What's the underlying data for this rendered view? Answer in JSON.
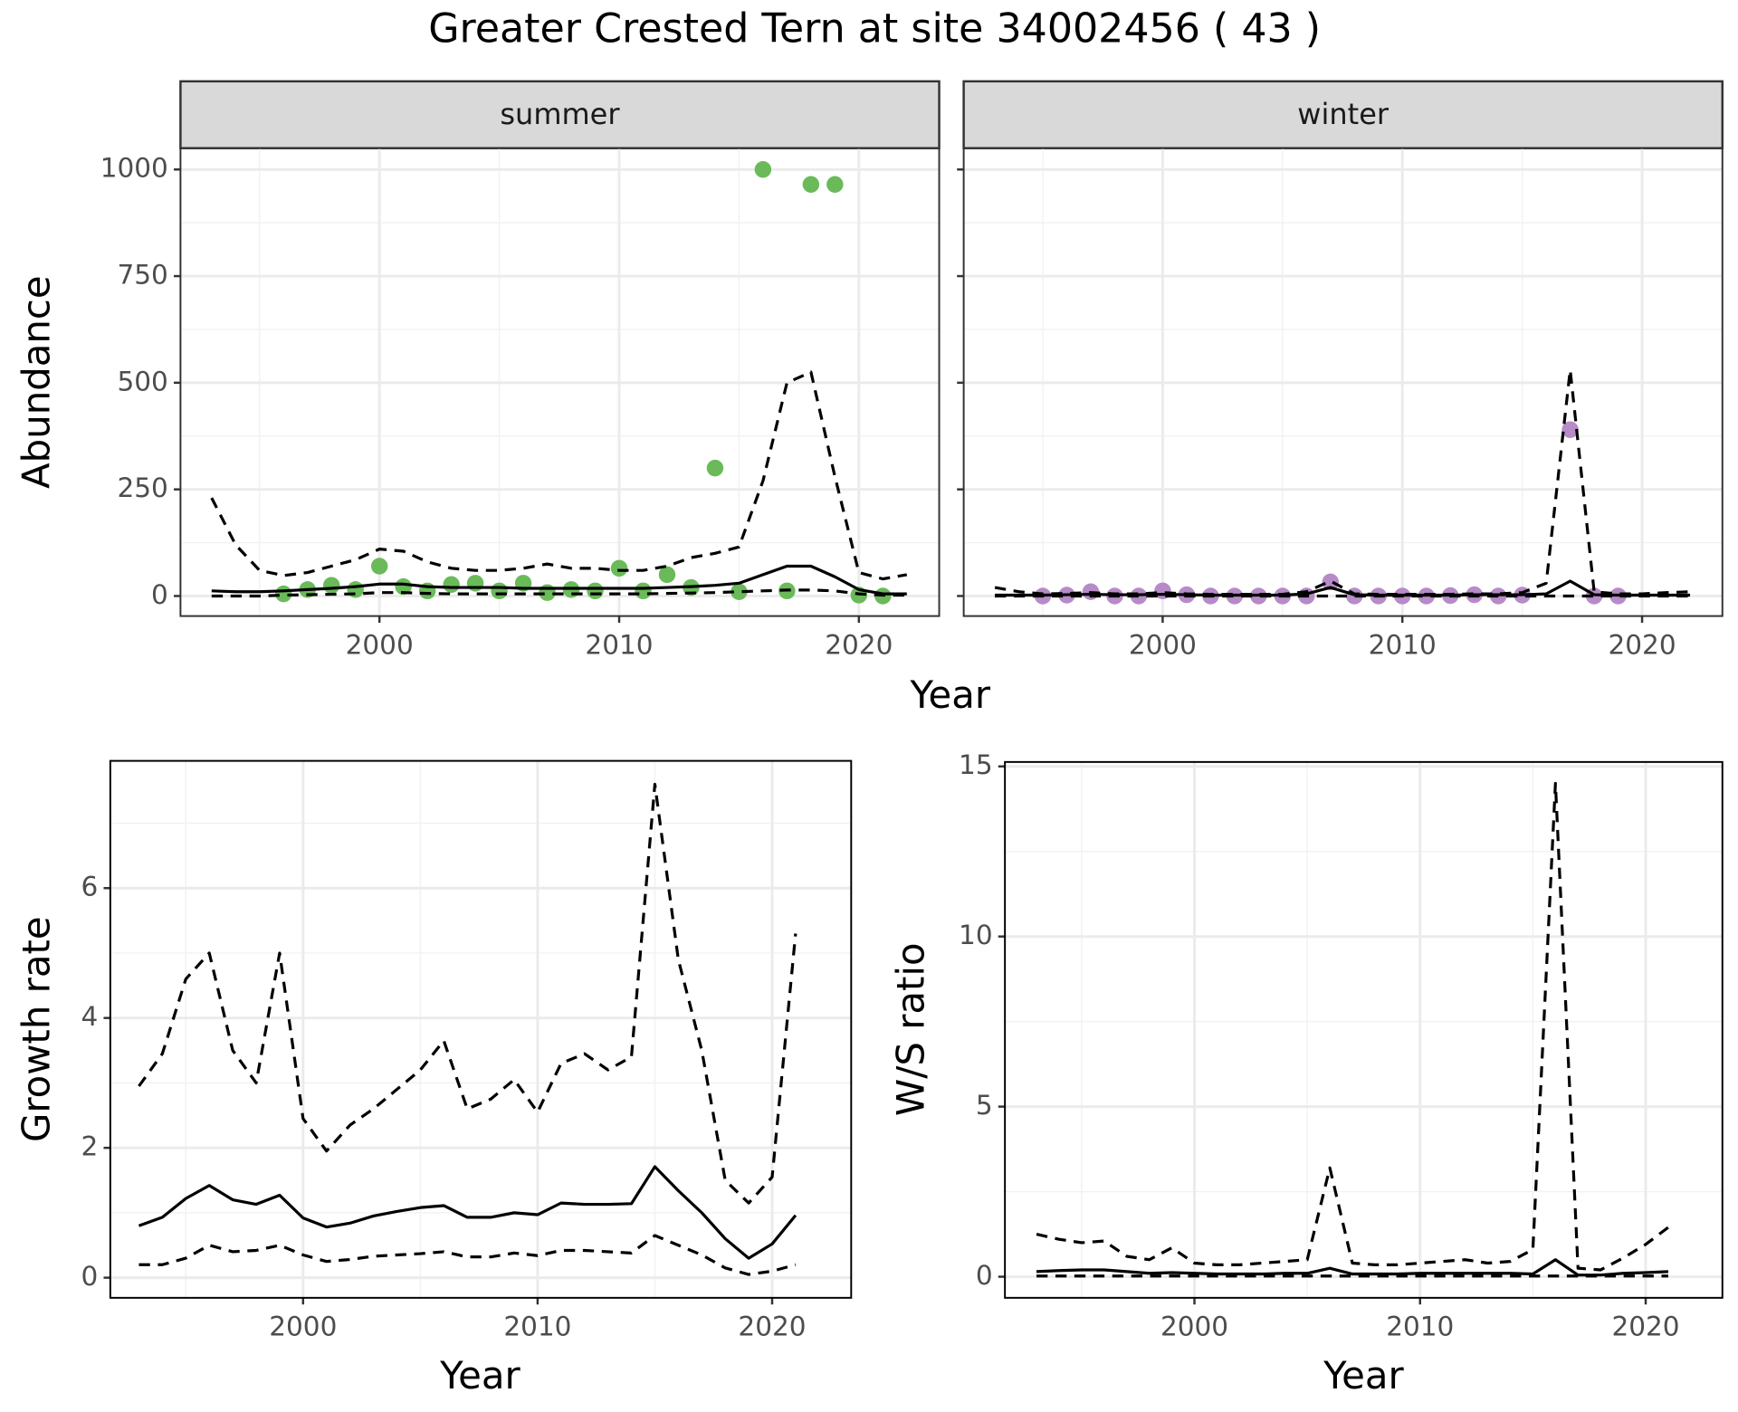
{
  "chart_data": [
    {
      "type": "line",
      "title": "Greater Crested Tern at site 34002456 ( 43 )",
      "strip": "summer",
      "xlabel": "Year",
      "ylabel": "Abundance",
      "xlim": [
        1991.7,
        2023.35
      ],
      "xticks": [
        2000,
        2010,
        2020
      ],
      "xminor": [
        1995,
        2005,
        2015
      ],
      "ylim": [
        -47,
        1050
      ],
      "yticks": [
        0,
        250,
        500,
        750,
        1000
      ],
      "yminor": [
        125,
        375,
        625,
        875
      ],
      "ytick_labels": true,
      "grid": true,
      "series": [
        {
          "style": "points",
          "color": "#6aba5a",
          "x": [
            1996,
            1997,
            1998,
            1999,
            2000,
            2001,
            2002,
            2003,
            2004,
            2005,
            2006,
            2007,
            2008,
            2009,
            2010,
            2011,
            2012,
            2013,
            2014,
            2015,
            2016,
            2017,
            2018,
            2019,
            2020,
            2021
          ],
          "values": [
            5,
            15,
            25,
            15,
            70,
            22,
            12,
            27,
            30,
            12,
            30,
            8,
            15,
            12,
            65,
            12,
            50,
            20,
            300,
            10,
            1000,
            12,
            965,
            965,
            2,
            0
          ]
        },
        {
          "style": "solid",
          "color": "#000000",
          "x": [
            1993,
            1994,
            1995,
            1996,
            1997,
            1998,
            1999,
            2000,
            2001,
            2002,
            2003,
            2004,
            2005,
            2006,
            2007,
            2008,
            2009,
            2010,
            2011,
            2012,
            2013,
            2014,
            2015,
            2016,
            2017,
            2018,
            2019,
            2020,
            2021,
            2022
          ],
          "values": [
            12,
            10,
            10,
            12,
            15,
            18,
            22,
            28,
            28,
            22,
            20,
            20,
            20,
            18,
            18,
            18,
            18,
            18,
            18,
            20,
            22,
            25,
            30,
            50,
            70,
            70,
            45,
            15,
            5,
            5
          ]
        },
        {
          "style": "dashed",
          "color": "#000000",
          "x": [
            1993,
            1994,
            1995,
            1996,
            1997,
            1998,
            1999,
            2000,
            2001,
            2002,
            2003,
            2004,
            2005,
            2006,
            2007,
            2008,
            2009,
            2010,
            2011,
            2012,
            2013,
            2014,
            2015,
            2016,
            2017,
            2018,
            2019,
            2020,
            2021,
            2022
          ],
          "values": [
            230,
            120,
            60,
            48,
            55,
            70,
            85,
            110,
            105,
            80,
            65,
            60,
            60,
            65,
            75,
            65,
            65,
            60,
            60,
            70,
            90,
            100,
            115,
            270,
            500,
            525,
            280,
            55,
            40,
            50
          ]
        },
        {
          "style": "dashed",
          "color": "#000000",
          "x": [
            1993,
            1994,
            1995,
            1996,
            1997,
            1998,
            1999,
            2000,
            2001,
            2002,
            2003,
            2004,
            2005,
            2006,
            2007,
            2008,
            2009,
            2010,
            2011,
            2012,
            2013,
            2014,
            2015,
            2016,
            2017,
            2018,
            2019,
            2020,
            2021,
            2022
          ],
          "values": [
            0,
            0,
            0,
            2,
            3,
            4,
            5,
            8,
            8,
            6,
            5,
            5,
            5,
            5,
            5,
            5,
            5,
            5,
            5,
            6,
            7,
            8,
            10,
            12,
            14,
            14,
            12,
            5,
            2,
            2
          ]
        }
      ]
    },
    {
      "type": "line",
      "strip": "winter",
      "xlim": [
        1991.7,
        2023.35
      ],
      "xticks": [
        2000,
        2010,
        2020
      ],
      "xminor": [
        1995,
        2005,
        2015
      ],
      "ylim": [
        -47,
        1050
      ],
      "yticks": [
        0,
        250,
        500,
        750,
        1000
      ],
      "yminor": [
        125,
        375,
        625,
        875
      ],
      "ytick_labels": false,
      "grid": true,
      "series": [
        {
          "style": "points",
          "color": "#b68bc7",
          "x": [
            1995,
            1996,
            1997,
            1998,
            1999,
            2000,
            2001,
            2002,
            2003,
            2004,
            2005,
            2006,
            2007,
            2008,
            2009,
            2010,
            2011,
            2012,
            2013,
            2014,
            2015,
            2017,
            2018,
            2019
          ],
          "values": [
            0,
            2,
            10,
            0,
            0,
            12,
            3,
            0,
            0,
            0,
            0,
            0,
            33,
            0,
            0,
            0,
            0,
            1,
            3,
            0,
            2,
            390,
            0,
            0
          ]
        },
        {
          "style": "solid",
          "color": "#000000",
          "x": [
            1993,
            1994,
            1995,
            1996,
            1997,
            1998,
            1999,
            2000,
            2001,
            2002,
            2003,
            2004,
            2005,
            2006,
            2007,
            2008,
            2009,
            2010,
            2011,
            2012,
            2013,
            2014,
            2015,
            2016,
            2017,
            2018,
            2019,
            2020,
            2021,
            2022
          ],
          "values": [
            2,
            2,
            2,
            3,
            4,
            3,
            3,
            4,
            3,
            2,
            2,
            2,
            2,
            5,
            20,
            3,
            2,
            2,
            2,
            2,
            3,
            3,
            3,
            5,
            35,
            3,
            2,
            2,
            2,
            2
          ]
        },
        {
          "style": "dashed",
          "color": "#000000",
          "x": [
            1993,
            1994,
            1995,
            1996,
            1997,
            1998,
            1999,
            2000,
            2001,
            2002,
            2003,
            2004,
            2005,
            2006,
            2007,
            2008,
            2009,
            2010,
            2011,
            2012,
            2013,
            2014,
            2015,
            2016,
            2017,
            2018,
            2019,
            2020,
            2021,
            2022
          ],
          "values": [
            20,
            10,
            5,
            6,
            8,
            5,
            5,
            8,
            5,
            4,
            4,
            4,
            4,
            10,
            35,
            5,
            4,
            4,
            4,
            4,
            5,
            5,
            8,
            30,
            530,
            10,
            5,
            5,
            8,
            10
          ]
        },
        {
          "style": "dashed",
          "color": "#000000",
          "x": [
            1993,
            1994,
            1995,
            1996,
            1997,
            1998,
            1999,
            2000,
            2001,
            2002,
            2003,
            2004,
            2005,
            2006,
            2007,
            2008,
            2009,
            2010,
            2011,
            2012,
            2013,
            2014,
            2015,
            2016,
            2017,
            2018,
            2019,
            2020,
            2021,
            2022
          ],
          "values": [
            0,
            0,
            0,
            0,
            0,
            0,
            0,
            0,
            0,
            0,
            0,
            0,
            0,
            0,
            0,
            0,
            0,
            0,
            0,
            0,
            0,
            0,
            0,
            0,
            0,
            0,
            0,
            0,
            0,
            0
          ]
        }
      ]
    },
    {
      "type": "line",
      "xlabel": "Year",
      "ylabel": "Growth rate",
      "xlim": [
        1991.78,
        2023.37
      ],
      "xticks": [
        2000,
        2010,
        2020
      ],
      "xminor": [
        1995,
        2005,
        2015
      ],
      "ylim": [
        -0.31,
        7.96
      ],
      "yticks": [
        0,
        2,
        4,
        6
      ],
      "yminor": [
        1,
        3,
        5,
        7
      ],
      "ytick_labels": true,
      "grid": true,
      "series": [
        {
          "style": "solid",
          "color": "#000000",
          "x": [
            1993,
            1994,
            1995,
            1996,
            1997,
            1998,
            1999,
            2000,
            2001,
            2002,
            2003,
            2004,
            2005,
            2006,
            2007,
            2008,
            2009,
            2010,
            2011,
            2012,
            2013,
            2014,
            2015,
            2016,
            2017,
            2018,
            2019,
            2020,
            2021
          ],
          "values": [
            0.8,
            0.93,
            1.22,
            1.42,
            1.2,
            1.13,
            1.27,
            0.92,
            0.78,
            0.84,
            0.95,
            1.02,
            1.08,
            1.11,
            0.93,
            0.93,
            1.0,
            0.97,
            1.15,
            1.13,
            1.13,
            1.14,
            1.71,
            1.34,
            1.0,
            0.6,
            0.3,
            0.52,
            0.96
          ]
        },
        {
          "style": "dashed",
          "color": "#000000",
          "x": [
            1993,
            1994,
            1995,
            1996,
            1997,
            1998,
            1999,
            2000,
            2001,
            2002,
            2003,
            2004,
            2005,
            2006,
            2007,
            2008,
            2009,
            2010,
            2011,
            2012,
            2013,
            2014,
            2015,
            2016,
            2017,
            2018,
            2019,
            2020,
            2021
          ],
          "values": [
            2.95,
            3.45,
            4.6,
            5.0,
            3.5,
            3.0,
            5.0,
            2.45,
            1.95,
            2.35,
            2.6,
            2.9,
            3.2,
            3.65,
            2.6,
            2.75,
            3.05,
            2.55,
            3.3,
            3.45,
            3.2,
            3.4,
            7.6,
            4.9,
            3.5,
            1.5,
            1.15,
            1.55,
            5.3
          ]
        },
        {
          "style": "dashed",
          "color": "#000000",
          "x": [
            1993,
            1994,
            1995,
            1996,
            1997,
            1998,
            1999,
            2000,
            2001,
            2002,
            2003,
            2004,
            2005,
            2006,
            2007,
            2008,
            2009,
            2010,
            2011,
            2012,
            2013,
            2014,
            2015,
            2016,
            2017,
            2018,
            2019,
            2020,
            2021
          ],
          "values": [
            0.2,
            0.2,
            0.3,
            0.5,
            0.4,
            0.42,
            0.5,
            0.35,
            0.25,
            0.28,
            0.33,
            0.35,
            0.37,
            0.4,
            0.32,
            0.32,
            0.38,
            0.34,
            0.42,
            0.42,
            0.4,
            0.38,
            0.65,
            0.5,
            0.35,
            0.15,
            0.05,
            0.1,
            0.2
          ]
        }
      ]
    },
    {
      "type": "line",
      "xlabel": "Year",
      "ylabel": "W/S ratio",
      "xlim": [
        1991.6,
        2023.4
      ],
      "xticks": [
        2000,
        2010,
        2020
      ],
      "xminor": [
        1995,
        2005,
        2015
      ],
      "ylim": [
        -0.62,
        15.13
      ],
      "yticks": [
        0,
        5,
        10,
        15
      ],
      "yminor": [
        2.5,
        7.5,
        12.5
      ],
      "ytick_labels": true,
      "grid": true,
      "series": [
        {
          "style": "solid",
          "color": "#000000",
          "x": [
            1993,
            1994,
            1995,
            1996,
            1997,
            1998,
            1999,
            2000,
            2001,
            2002,
            2003,
            2004,
            2005,
            2006,
            2007,
            2008,
            2009,
            2010,
            2011,
            2012,
            2013,
            2014,
            2015,
            2016,
            2017,
            2018,
            2019,
            2020,
            2021
          ],
          "values": [
            0.15,
            0.18,
            0.2,
            0.2,
            0.15,
            0.1,
            0.12,
            0.1,
            0.08,
            0.08,
            0.08,
            0.1,
            0.1,
            0.25,
            0.08,
            0.08,
            0.08,
            0.1,
            0.1,
            0.1,
            0.1,
            0.1,
            0.08,
            0.5,
            0.05,
            0.05,
            0.1,
            0.12,
            0.15
          ]
        },
        {
          "style": "dashed",
          "color": "#000000",
          "x": [
            1993,
            1994,
            1995,
            1996,
            1997,
            1998,
            1999,
            2000,
            2001,
            2002,
            2003,
            2004,
            2005,
            2006,
            2007,
            2008,
            2009,
            2010,
            2011,
            2012,
            2013,
            2014,
            2015,
            2016,
            2017,
            2018,
            2019,
            2020,
            2021
          ],
          "values": [
            1.25,
            1.1,
            1.0,
            1.05,
            0.6,
            0.5,
            0.85,
            0.4,
            0.35,
            0.35,
            0.4,
            0.45,
            0.5,
            3.2,
            0.4,
            0.35,
            0.35,
            0.4,
            0.45,
            0.5,
            0.4,
            0.45,
            0.8,
            14.5,
            0.25,
            0.2,
            0.55,
            0.95,
            1.45
          ]
        },
        {
          "style": "dashed",
          "color": "#000000",
          "x": [
            1993,
            1994,
            1995,
            1996,
            1997,
            1998,
            1999,
            2000,
            2001,
            2002,
            2003,
            2004,
            2005,
            2006,
            2007,
            2008,
            2009,
            2010,
            2011,
            2012,
            2013,
            2014,
            2015,
            2016,
            2017,
            2018,
            2019,
            2020,
            2021
          ],
          "values": [
            0.02,
            0.02,
            0.02,
            0.02,
            0.02,
            0.02,
            0.02,
            0.02,
            0.02,
            0.02,
            0.02,
            0.02,
            0.02,
            0.02,
            0.02,
            0.02,
            0.02,
            0.02,
            0.02,
            0.02,
            0.02,
            0.02,
            0.02,
            0.02,
            0.02,
            0.02,
            0.02,
            0.02,
            0.02
          ]
        }
      ]
    }
  ]
}
